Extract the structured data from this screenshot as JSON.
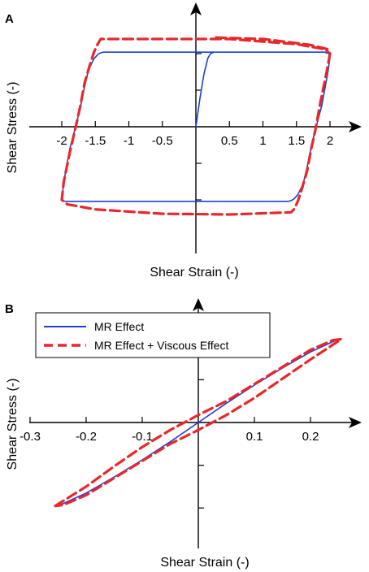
{
  "chart_data": [
    {
      "panel": "A",
      "type": "line",
      "xlabel": "Shear Strain (-)",
      "ylabel": "Shear Stress (-)",
      "xlim": [
        -2.25,
        2.25
      ],
      "xticks": [
        -2,
        -1.5,
        -1,
        -0.5,
        0.5,
        1,
        1.5,
        2
      ],
      "xtick_labels": [
        "-2",
        "-1.5",
        "-1",
        "-0.5",
        "0.5",
        "1",
        "1.5",
        "2"
      ],
      "ylim": [
        -1.5,
        1.5
      ],
      "yticks": [
        -1,
        -0.5,
        0.5,
        1
      ],
      "ytick_labels": [],
      "grid": false,
      "series": [
        {
          "color": "#1f3fd6",
          "dash": "solid",
          "x": [
            0,
            0.06,
            0.12,
            0.18,
            0.22,
            0.27,
            0.35,
            1.0,
            1.7,
            1.92,
            1.98,
            2.0,
            1.97,
            1.88,
            1.78,
            1.72,
            1.66,
            1.6,
            1.52,
            1.46,
            1.42,
            1.38,
            1.3,
            0.5,
            -1.0,
            -1.95,
            -2.0,
            -1.97,
            -1.88,
            -1.78,
            -1.72,
            -1.66,
            -1.6,
            -1.52,
            -1.46,
            -1.42,
            -1.38,
            -1.3,
            0.4,
            1.7,
            1.92,
            1.98,
            2.0
          ],
          "y": [
            0,
            0.38,
            0.72,
            0.94,
            1.0,
            1.02,
            1.02,
            1.02,
            1.02,
            1.02,
            1.0,
            0.95,
            0.75,
            0.3,
            -0.05,
            -0.28,
            -0.55,
            -0.78,
            -0.93,
            -0.99,
            -1.01,
            -1.02,
            -1.02,
            -1.02,
            -1.02,
            -1.02,
            -1.0,
            -0.75,
            -0.3,
            0.05,
            0.28,
            0.55,
            0.78,
            0.93,
            0.99,
            1.01,
            1.02,
            1.02,
            1.02,
            1.02,
            1.02,
            1.0,
            0.95
          ]
        },
        {
          "color": "#e8272b",
          "dash": "dashed",
          "x": [
            0.3,
            1.0,
            1.7,
            1.97,
            2.0,
            1.95,
            1.86,
            1.78,
            1.72,
            1.66,
            1.58,
            1.52,
            1.47,
            1.42,
            0.5,
            -0.5,
            -1.5,
            -1.92,
            -2.0,
            -1.97,
            -1.88,
            -1.78,
            -1.72,
            -1.66,
            -1.58,
            -1.52,
            -1.47,
            -1.42,
            -0.5,
            0.5,
            1.5,
            1.92,
            2.0
          ],
          "y": [
            1.22,
            1.2,
            1.12,
            1.06,
            1.0,
            0.75,
            0.35,
            -0.05,
            -0.3,
            -0.6,
            -0.85,
            -1.02,
            -1.12,
            -1.17,
            -1.2,
            -1.19,
            -1.13,
            -1.06,
            -1.0,
            -0.75,
            -0.35,
            0.05,
            0.3,
            0.6,
            0.85,
            1.02,
            1.12,
            1.2,
            1.2,
            1.2,
            1.13,
            1.06,
            1.0
          ]
        }
      ]
    },
    {
      "panel": "B",
      "type": "line",
      "xlabel": "Shear Strain (-)",
      "ylabel": "Shear Stress (-)",
      "xlim": [
        -0.3,
        0.3
      ],
      "xticks": [
        -0.3,
        -0.2,
        -0.1,
        0.1,
        0.2
      ],
      "xtick_labels": [
        "-0.3",
        "-0.2",
        "-0.1",
        "0.1",
        "0.2"
      ],
      "ylim": [
        -1.2,
        1.2
      ],
      "yticks": [
        -0.8,
        -0.4,
        0.4,
        0.8
      ],
      "ytick_labels": [],
      "grid": false,
      "legend": {
        "placement": "top-left",
        "entries": [
          {
            "label": "MR Effect",
            "color": "#1f3fd6",
            "dash": "solid"
          },
          {
            "label": "MR Effect + Viscous Effect",
            "color": "#e8272b",
            "dash": "dashed"
          }
        ]
      },
      "series": [
        {
          "name": "MR Effect",
          "color": "#1f3fd6",
          "dash": "solid",
          "x": [
            -0.25,
            -0.2,
            -0.15,
            -0.1,
            -0.05,
            0,
            0.05,
            0.1,
            0.15,
            0.2,
            0.25
          ],
          "y": [
            -0.78,
            -0.66,
            -0.51,
            -0.35,
            -0.18,
            0,
            0.18,
            0.35,
            0.51,
            0.66,
            0.78
          ]
        },
        {
          "name": "MR Effect + Viscous Effect",
          "color": "#e8272b",
          "dash": "dashed",
          "x": [
            -0.255,
            -0.2,
            -0.15,
            -0.1,
            -0.05,
            0,
            0.05,
            0.1,
            0.15,
            0.2,
            0.24,
            0.255,
            0.2,
            0.15,
            0.1,
            0.05,
            0,
            -0.05,
            -0.1,
            -0.15,
            -0.2,
            -0.24,
            -0.255
          ],
          "y": [
            -0.78,
            -0.6,
            -0.41,
            -0.23,
            -0.07,
            0.07,
            0.2,
            0.36,
            0.52,
            0.68,
            0.77,
            0.78,
            0.59,
            0.41,
            0.23,
            0.07,
            -0.07,
            -0.2,
            -0.36,
            -0.52,
            -0.68,
            -0.77,
            -0.78
          ]
        }
      ]
    }
  ]
}
